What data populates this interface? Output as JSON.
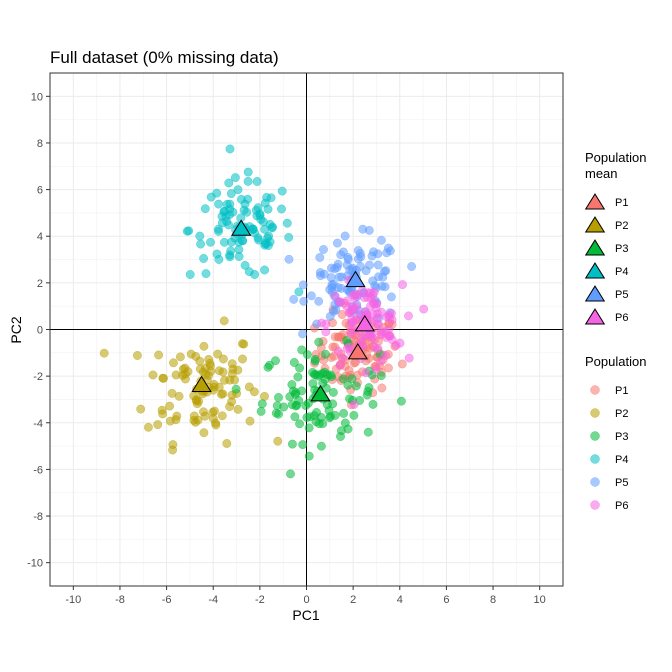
{
  "chart_data": {
    "type": "scatter",
    "title": "Full dataset (0% missing data)",
    "xlabel": "PC1",
    "ylabel": "PC2",
    "xlim": [
      -11,
      11
    ],
    "ylim": [
      -11,
      11
    ],
    "xticks": [
      -10,
      -8,
      -6,
      -4,
      -2,
      0,
      2,
      4,
      6,
      8,
      10
    ],
    "yticks": [
      -10,
      -8,
      -6,
      -4,
      -2,
      0,
      2,
      4,
      6,
      8,
      10
    ],
    "grid": true,
    "reference_lines": {
      "x": 0,
      "y": 0
    },
    "legend_placement": "right",
    "legends": [
      {
        "title_lines": [
          "Population",
          " mean"
        ],
        "marker": "triangle",
        "entries": [
          "P1",
          "P2",
          "P3",
          "P4",
          "P5",
          "P6"
        ]
      },
      {
        "title_lines": [
          "Population"
        ],
        "marker": "circle",
        "entries": [
          "P1",
          "P2",
          "P3",
          "P4",
          "P5",
          "P6"
        ]
      }
    ],
    "series": [
      {
        "name": "P1",
        "color": "#F8766D",
        "mean": [
          2.2,
          -1.0
        ],
        "spread": [
          0.9,
          0.85
        ],
        "n": 100
      },
      {
        "name": "P2",
        "color": "#B79F00",
        "mean": [
          -4.5,
          -2.4
        ],
        "spread": [
          1.2,
          1.2
        ],
        "n": 100
      },
      {
        "name": "P3",
        "color": "#00BA38",
        "mean": [
          0.6,
          -2.8
        ],
        "spread": [
          1.25,
          1.0
        ],
        "n": 100
      },
      {
        "name": "P4",
        "color": "#00BFC4",
        "mean": [
          -2.8,
          4.3
        ],
        "spread": [
          1.1,
          1.05
        ],
        "n": 100
      },
      {
        "name": "P5",
        "color": "#619CFF",
        "mean": [
          2.1,
          2.1
        ],
        "spread": [
          1.0,
          0.9
        ],
        "n": 100
      },
      {
        "name": "P6",
        "color": "#F564E3",
        "mean": [
          2.5,
          0.2
        ],
        "spread": [
          0.8,
          0.85
        ],
        "n": 100
      }
    ]
  }
}
